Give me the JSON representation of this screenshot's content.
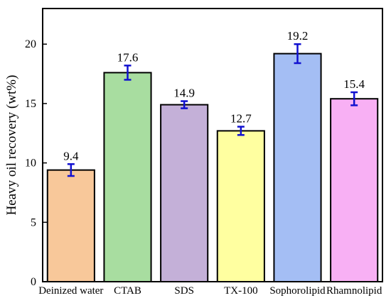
{
  "chart_data": {
    "type": "bar",
    "ylabel": "Heavy oil recovery (wt%)",
    "xlabel": "",
    "ylim": [
      0,
      23
    ],
    "yticks": [
      0,
      5,
      10,
      15,
      20
    ],
    "categories": [
      "Deinized water",
      "CTAB",
      "SDS",
      "TX-100",
      "Sophorolipid",
      "Rhamnolipid"
    ],
    "values": [
      9.4,
      17.6,
      14.9,
      12.7,
      19.2,
      15.4
    ],
    "value_labels": [
      "9.4",
      "17.6",
      "14.9",
      "12.7",
      "19.2",
      "15.4"
    ],
    "errors": [
      0.5,
      0.6,
      0.3,
      0.35,
      0.8,
      0.55
    ],
    "bar_colors": [
      "#F8C89A",
      "#A8DDA0",
      "#C4B0D8",
      "#FFFFA0",
      "#A4BEF4",
      "#F8B0F4"
    ],
    "error_bar_color": "#1010D0",
    "grid": false
  }
}
